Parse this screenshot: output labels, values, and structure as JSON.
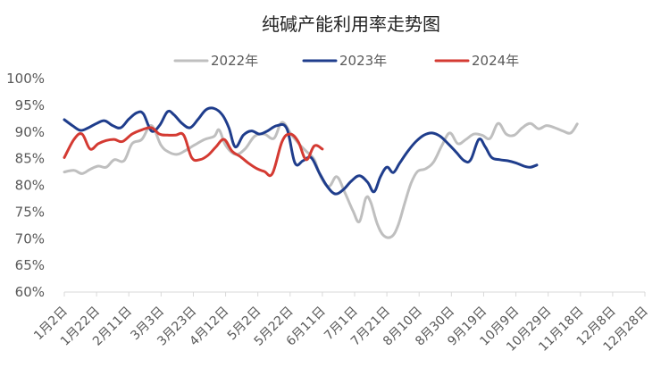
{
  "chart_data": {
    "type": "line",
    "title": "纯碱产能利用率走势图",
    "xlabel": "",
    "ylabel": "",
    "y_ticks": [
      "60%",
      "65%",
      "70%",
      "75%",
      "80%",
      "85%",
      "90%",
      "95%",
      "100%"
    ],
    "ylim": [
      60,
      100
    ],
    "x_ticks": [
      "1月2日",
      "1月22日",
      "2月11日",
      "3月3日",
      "3月23日",
      "4月12日",
      "5月2日",
      "5月22日",
      "6月11日",
      "7月1日",
      "7月21日",
      "8月10日",
      "8月30日",
      "9月19日",
      "10月9日",
      "10月29日",
      "11月18日",
      "12月8日",
      "12月28日"
    ],
    "x_day_range": [
      2,
      362
    ],
    "legend_position": "top",
    "grid": false,
    "series": [
      {
        "name": "2022年",
        "color": "#bfbfbf",
        "points": [
          [
            2,
            82.5
          ],
          [
            8,
            82.8
          ],
          [
            13,
            82.2
          ],
          [
            18,
            83
          ],
          [
            23,
            83.6
          ],
          [
            28,
            83.4
          ],
          [
            33,
            84.8
          ],
          [
            39,
            84.6
          ],
          [
            44,
            87.8
          ],
          [
            50,
            88.6
          ],
          [
            56,
            91.2
          ],
          [
            62,
            87.5
          ],
          [
            67,
            86.2
          ],
          [
            72,
            85.8
          ],
          [
            77,
            86.5
          ],
          [
            83,
            87.6
          ],
          [
            89,
            88.6
          ],
          [
            95,
            89.2
          ],
          [
            98,
            90.4
          ],
          [
            102,
            87.5
          ],
          [
            108,
            85.8
          ],
          [
            114,
            86.8
          ],
          [
            120,
            89.2
          ],
          [
            126,
            89.6
          ],
          [
            132,
            88.8
          ],
          [
            137,
            91.8
          ],
          [
            143,
            89.4
          ],
          [
            148,
            87.6
          ],
          [
            152,
            86.4
          ],
          [
            157,
            84.8
          ],
          [
            161,
            81.6
          ],
          [
            166,
            79.8
          ],
          [
            171,
            81.6
          ],
          [
            176,
            78.6
          ],
          [
            181,
            75.2
          ],
          [
            185,
            73.2
          ],
          [
            189,
            77.6
          ],
          [
            192,
            76.8
          ],
          [
            196,
            72.8
          ],
          [
            200,
            70.6
          ],
          [
            205,
            70.4
          ],
          [
            209,
            72.5
          ],
          [
            213,
            76.6
          ],
          [
            217,
            80.4
          ],
          [
            221,
            82.6
          ],
          [
            226,
            83.1
          ],
          [
            231,
            84.4
          ],
          [
            236,
            87.4
          ],
          [
            241,
            89.8
          ],
          [
            246,
            87.8
          ],
          [
            251,
            88.6
          ],
          [
            256,
            89.6
          ],
          [
            261,
            89.4
          ],
          [
            266,
            88.8
          ],
          [
            271,
            91.6
          ],
          [
            276,
            89.6
          ],
          [
            281,
            89.4
          ],
          [
            286,
            90.8
          ],
          [
            291,
            91.6
          ],
          [
            296,
            90.6
          ],
          [
            301,
            91.2
          ],
          [
            306,
            90.8
          ],
          [
            311,
            90.2
          ],
          [
            316,
            89.8
          ],
          [
            320,
            91.5
          ]
        ]
      },
      {
        "name": "2023年",
        "color": "#1f3d8c",
        "points": [
          [
            2,
            92.3
          ],
          [
            7,
            91.2
          ],
          [
            12,
            90.3
          ],
          [
            17,
            90.8
          ],
          [
            22,
            91.6
          ],
          [
            27,
            92.1
          ],
          [
            32,
            91.2
          ],
          [
            37,
            90.8
          ],
          [
            42,
            92.4
          ],
          [
            47,
            93.6
          ],
          [
            51,
            93.4
          ],
          [
            56,
            90.2
          ],
          [
            61,
            91.2
          ],
          [
            66,
            93.8
          ],
          [
            70,
            93.2
          ],
          [
            75,
            91.6
          ],
          [
            80,
            90.8
          ],
          [
            85,
            92.4
          ],
          [
            90,
            94.2
          ],
          [
            95,
            94.4
          ],
          [
            100,
            93.2
          ],
          [
            104,
            90.8
          ],
          [
            108,
            87.2
          ],
          [
            113,
            89.4
          ],
          [
            118,
            90.2
          ],
          [
            123,
            89.6
          ],
          [
            128,
            90.2
          ],
          [
            134,
            91.2
          ],
          [
            140,
            90.6
          ],
          [
            145,
            84.2
          ],
          [
            150,
            84.6
          ],
          [
            155,
            85.2
          ],
          [
            160,
            82.4
          ],
          [
            165,
            79.8
          ],
          [
            170,
            78.4
          ],
          [
            175,
            79.2
          ],
          [
            180,
            80.8
          ],
          [
            185,
            81.8
          ],
          [
            190,
            80.6
          ],
          [
            194,
            78.8
          ],
          [
            198,
            81.6
          ],
          [
            202,
            83.4
          ],
          [
            206,
            82.4
          ],
          [
            210,
            84.2
          ],
          [
            215,
            86.4
          ],
          [
            220,
            88.2
          ],
          [
            225,
            89.4
          ],
          [
            230,
            89.8
          ],
          [
            235,
            89.2
          ],
          [
            240,
            87.8
          ],
          [
            245,
            86.2
          ],
          [
            250,
            84.6
          ],
          [
            254,
            84.8
          ],
          [
            259,
            88.6
          ],
          [
            263,
            87.2
          ],
          [
            267,
            85.2
          ],
          [
            272,
            84.8
          ],
          [
            277,
            84.6
          ],
          [
            282,
            84.2
          ],
          [
            287,
            83.6
          ],
          [
            291,
            83.4
          ],
          [
            295,
            83.8
          ]
        ]
      },
      {
        "name": "2024年",
        "color": "#d43a32",
        "points": [
          [
            2,
            85.2
          ],
          [
            8,
            88.6
          ],
          [
            13,
            89.6
          ],
          [
            18,
            86.8
          ],
          [
            23,
            87.8
          ],
          [
            28,
            88.4
          ],
          [
            33,
            88.6
          ],
          [
            38,
            88.2
          ],
          [
            44,
            89.6
          ],
          [
            50,
            90.4
          ],
          [
            56,
            90.8
          ],
          [
            61,
            89.6
          ],
          [
            66,
            89.4
          ],
          [
            71,
            89.4
          ],
          [
            76,
            89.4
          ],
          [
            81,
            85.2
          ],
          [
            86,
            84.8
          ],
          [
            91,
            85.6
          ],
          [
            96,
            87.2
          ],
          [
            101,
            88.6
          ],
          [
            106,
            86.4
          ],
          [
            111,
            85.4
          ],
          [
            116,
            84.2
          ],
          [
            121,
            83.2
          ],
          [
            126,
            82.6
          ],
          [
            131,
            82.2
          ],
          [
            137,
            88.2
          ],
          [
            142,
            89.6
          ],
          [
            147,
            88.2
          ],
          [
            152,
            84.8
          ],
          [
            157,
            87.4
          ],
          [
            162,
            86.8
          ]
        ]
      }
    ]
  }
}
